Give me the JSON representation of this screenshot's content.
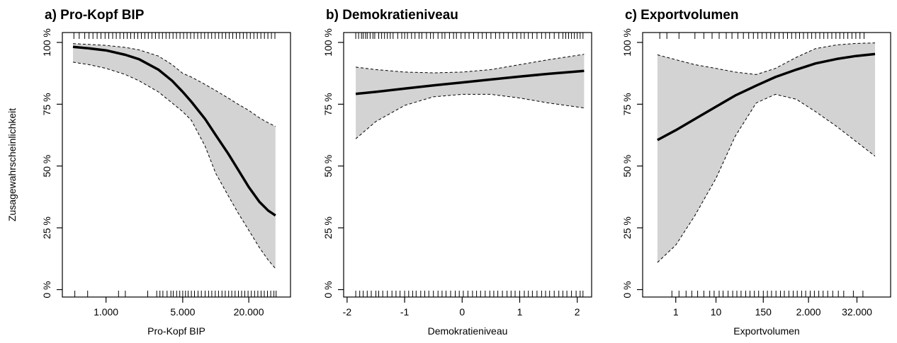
{
  "figure": {
    "ylabel": "Zusagewahrscheinlichkeit"
  },
  "chart_data": [
    {
      "type": "line",
      "title": "a) Pro-Kopf BIP",
      "xlabel": "Pro-Kopf BIP",
      "ylabel": "Zusagewahrscheinlichkeit",
      "x_scale": "log",
      "x_ticks": [
        1000,
        5000,
        20000
      ],
      "x_tick_labels": [
        "1.000",
        "5.000",
        "20.000"
      ],
      "xlim": [
        400,
        48000
      ],
      "y_ticks": [
        0,
        25,
        50,
        75,
        100
      ],
      "y_tick_labels": [
        "0 %",
        "25 %",
        "50 %",
        "75 %",
        "100 %"
      ],
      "ylim": [
        -3,
        104
      ],
      "grid": false,
      "series": [
        {
          "x": [
            500,
            700,
            1000,
            1500,
            2000,
            3000,
            4000,
            5000,
            6000,
            8000,
            10000,
            13000,
            16000,
            20000,
            25000,
            30000,
            35000
          ],
          "values": [
            98.2,
            97.6,
            96.8,
            95.0,
            93.2,
            89.0,
            84.5,
            80.0,
            76.0,
            69.0,
            62.5,
            55.0,
            48.5,
            41.5,
            35.5,
            32.0,
            30.0
          ],
          "lower": [
            92.0,
            91.0,
            89.5,
            87.0,
            84.5,
            80.0,
            75.5,
            72.0,
            68.5,
            58.0,
            47.0,
            38.0,
            31.0,
            24.0,
            17.0,
            12.0,
            8.5
          ],
          "upper": [
            99.5,
            99.2,
            98.8,
            98.0,
            97.0,
            94.5,
            91.0,
            87.5,
            86.0,
            83.0,
            80.5,
            77.5,
            75.0,
            72.5,
            69.5,
            67.5,
            66.0
          ]
        }
      ],
      "rug_top": [
        510,
        570,
        640,
        700,
        760,
        830,
        900,
        980,
        1060,
        1150,
        1240,
        1340,
        1450,
        1560,
        1680,
        1810,
        1950,
        2100,
        2260,
        2430,
        2620,
        2820,
        3040,
        3270,
        3520,
        3790,
        4080,
        4390,
        4730,
        5090,
        5480,
        5900,
        6350,
        6840,
        7360,
        7920,
        8530,
        9180,
        9880,
        10640,
        11450,
        12330,
        13270,
        14290,
        15380,
        16560,
        17830,
        19190,
        20660,
        22240,
        23950,
        25780,
        27760,
        29880,
        32170,
        34630
      ],
      "rug_bottom": [
        520,
        680,
        1300,
        1500,
        2400,
        2900,
        3100,
        3300,
        3600,
        3900,
        4100,
        4400,
        4700,
        5000,
        5300,
        5600,
        6000,
        6400,
        6900,
        7400,
        8000,
        8600,
        9200,
        9900,
        10600,
        11400,
        12200,
        13100,
        14000,
        15000,
        16100,
        17200,
        18400,
        19700,
        21100,
        22600,
        24200,
        25900,
        27700,
        29600,
        31700,
        33900,
        35500
      ]
    },
    {
      "type": "line",
      "title": "b) Demokratieniveau",
      "xlabel": "Demokratieniveau",
      "ylabel": "",
      "x_scale": "linear",
      "x_ticks": [
        -2,
        -1,
        0,
        1,
        2
      ],
      "x_tick_labels": [
        "-2",
        "-1",
        "0",
        "1",
        "2"
      ],
      "xlim": [
        -2.06,
        2.25
      ],
      "y_ticks": [
        0,
        25,
        50,
        75,
        100
      ],
      "y_tick_labels": [
        "0 %",
        "25 %",
        "50 %",
        "75 %",
        "100 %"
      ],
      "ylim": [
        -3,
        104
      ],
      "grid": false,
      "series": [
        {
          "x": [
            -1.85,
            -1.5,
            -1.0,
            -0.5,
            0.0,
            0.5,
            1.0,
            1.5,
            2.12
          ],
          "values": [
            79.2,
            80.0,
            81.3,
            82.6,
            83.8,
            85.0,
            86.2,
            87.3,
            88.5
          ],
          "lower": [
            61.0,
            68.0,
            74.5,
            78.0,
            79.0,
            79.0,
            77.5,
            75.5,
            73.5
          ],
          "upper": [
            90.0,
            89.0,
            88.0,
            87.7,
            88.0,
            89.0,
            91.0,
            93.0,
            95.2
          ]
        }
      ],
      "rug_top": [
        -1.85,
        -1.8,
        -1.75,
        -1.72,
        -1.68,
        -1.65,
        -1.6,
        -1.55,
        -1.52,
        -1.45,
        -1.4,
        -1.35,
        -1.3,
        -1.25,
        -1.2,
        -1.12,
        -1.05,
        -1.0,
        -0.95,
        -0.88,
        -0.82,
        -0.75,
        -0.7,
        -0.62,
        -0.55,
        -0.5,
        -0.42,
        -0.35,
        -0.3,
        -0.22,
        -0.15,
        -0.1,
        -0.02,
        0.05,
        0.12,
        0.2,
        0.28,
        0.35,
        0.42,
        0.5,
        0.58,
        0.65,
        0.72,
        0.8,
        0.88,
        0.95,
        1.02,
        1.08,
        1.15,
        1.22,
        1.3,
        1.38,
        1.45,
        1.52,
        1.6,
        1.68,
        1.75,
        1.8,
        1.85,
        1.9,
        1.95,
        2.0,
        2.05,
        2.1
      ],
      "rug_bottom": [
        -1.85,
        -1.78,
        -1.72,
        -1.65,
        -1.58,
        -1.5,
        -1.45,
        -1.38,
        -1.3,
        -1.22,
        -1.15,
        -1.08,
        -1.0,
        -0.93,
        -0.86,
        -0.8,
        -0.72,
        -0.65,
        -0.58,
        -0.5,
        -0.42,
        -0.35,
        -0.28,
        -0.2,
        -0.12,
        -0.05,
        0.02,
        0.1,
        0.18,
        0.25,
        0.32,
        0.4,
        0.48,
        0.55,
        0.62,
        0.7,
        0.78,
        0.85,
        0.92,
        1.0,
        1.08,
        1.15,
        1.22,
        1.3,
        1.38,
        1.45,
        1.52,
        1.6,
        1.68,
        1.75,
        1.82,
        1.9,
        1.98,
        2.05,
        2.1
      ]
    },
    {
      "type": "line",
      "title": "c) Exportvolumen",
      "xlabel": "Exportvolumen",
      "ylabel": "",
      "x_scale": "log",
      "x_ticks": [
        1,
        10,
        150,
        2000,
        32000
      ],
      "x_tick_labels": [
        "1",
        "10",
        "150",
        "2.000",
        "32.000"
      ],
      "xlim": [
        0.15,
        220000
      ],
      "y_ticks": [
        0,
        25,
        50,
        75,
        100
      ],
      "y_tick_labels": [
        "0 %",
        "25 %",
        "50 %",
        "75 %",
        "100 %"
      ],
      "ylim": [
        -3,
        104
      ],
      "grid": false,
      "series": [
        {
          "x": [
            0.35,
            1,
            3,
            10,
            30,
            100,
            300,
            1000,
            3000,
            10000,
            30000,
            90000
          ],
          "values": [
            60.5,
            64.5,
            69.0,
            74.0,
            78.5,
            82.5,
            86.0,
            89.0,
            91.5,
            93.3,
            94.5,
            95.3
          ],
          "lower": [
            11.0,
            18.0,
            30.0,
            45.0,
            62.0,
            75.5,
            79.0,
            77.0,
            72.0,
            66.0,
            60.0,
            54.0
          ],
          "upper": [
            95.0,
            93.0,
            91.0,
            89.5,
            88.0,
            87.0,
            89.5,
            94.0,
            97.5,
            99.0,
            99.6,
            99.8
          ]
        }
      ],
      "rug_top": [
        0.4,
        0.6,
        1.2,
        3,
        5,
        8,
        12,
        18,
        25,
        35,
        48,
        65,
        85,
        110,
        140,
        180,
        230,
        290,
        370,
        470,
        600,
        760,
        960,
        1200,
        1500,
        1900,
        2400,
        3000,
        3800,
        4800,
        6000,
        7600,
        9600,
        12000,
        15000,
        19000,
        24000,
        30000,
        38000,
        48000
      ],
      "rug_bottom": [
        0.8,
        1.2,
        1.8,
        2.5,
        3.5,
        5,
        7,
        9,
        12,
        15,
        20,
        26,
        33,
        42,
        55,
        70,
        90,
        115,
        150,
        190,
        240,
        310,
        400,
        500,
        650,
        830,
        1050,
        1350,
        1700,
        2200,
        2800,
        3600,
        4600,
        6000,
        8000,
        11000,
        15000,
        26000,
        45000
      ]
    }
  ]
}
